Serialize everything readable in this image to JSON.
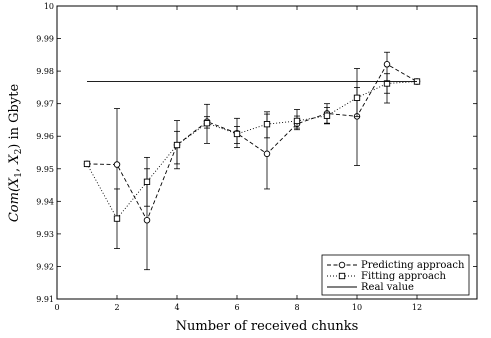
{
  "chart_data": {
    "type": "line",
    "title": "",
    "xlabel": "Number of received chunks",
    "ylabel_parts": [
      "Com(",
      "X",
      "1",
      ", ",
      "X",
      "2",
      ") in Gbyte"
    ],
    "xlim": [
      0,
      14
    ],
    "ylim": [
      9.91,
      10.0
    ],
    "xticks": [
      0,
      2,
      4,
      6,
      8,
      10,
      12
    ],
    "yticks": [
      9.91,
      9.92,
      9.93,
      9.94,
      9.95,
      9.96,
      9.97,
      9.98,
      9.99,
      10
    ],
    "ytick_labels": [
      "9.91",
      "9.92",
      "9.93",
      "9.94",
      "9.95",
      "9.96",
      "9.97",
      "9.98",
      "9.99",
      "10"
    ],
    "grid": false,
    "legend_position": "bottom-right",
    "series": [
      {
        "name": "Predicting approach",
        "style": "dashed",
        "marker": "circle",
        "x": [
          1,
          2,
          3,
          4,
          5,
          6,
          7,
          8,
          9,
          10,
          11,
          12
        ],
        "y": [
          9.9515,
          9.9513,
          9.9342,
          9.9573,
          9.9645,
          9.9609,
          9.9546,
          9.9638,
          9.967,
          9.9661,
          9.9821,
          9.9768
        ],
        "err_low": [
          null,
          9.9342,
          9.919,
          9.95,
          9.9578,
          9.9565,
          9.9438,
          9.962,
          9.9638,
          9.951,
          9.9702,
          null
        ],
        "err_high": [
          null,
          9.9685,
          9.9535,
          9.9648,
          9.9698,
          9.9655,
          9.9675,
          9.9682,
          9.97,
          9.9808,
          9.9858,
          null
        ]
      },
      {
        "name": "Fitting approach",
        "style": "dotted",
        "marker": "square",
        "x": [
          1,
          2,
          3,
          4,
          5,
          6,
          7,
          8,
          9,
          10,
          11,
          12
        ],
        "y": [
          9.9515,
          9.9347,
          9.946,
          9.9573,
          9.964,
          9.9607,
          9.9637,
          9.9647,
          9.9663,
          9.9718,
          9.9762,
          9.9768
        ],
        "err_low": [
          null,
          9.9255,
          9.9385,
          9.9515,
          9.9625,
          9.9578,
          9.9595,
          9.9625,
          9.964,
          9.966,
          9.9732,
          null
        ],
        "err_high": [
          null,
          9.9438,
          9.95,
          9.9615,
          9.966,
          9.963,
          9.9668,
          9.9662,
          9.9688,
          9.975,
          9.9792,
          null
        ]
      },
      {
        "name": "Real value",
        "style": "solid",
        "marker": "none",
        "x": [
          1,
          12
        ],
        "y": [
          9.9768,
          9.9768
        ]
      }
    ]
  }
}
